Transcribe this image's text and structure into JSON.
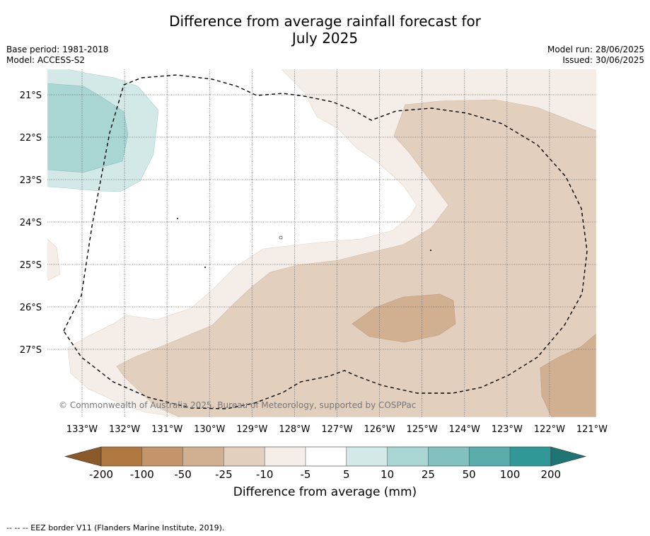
{
  "header": {
    "title_line1": "Difference from average rainfall forecast for",
    "title_line2": "July 2025",
    "base_period": "Base period: 1981-2018",
    "model": "Model: ACCESS-S2",
    "model_run": "Model run: 28/06/2025",
    "issued": "Issued: 30/06/2025"
  },
  "map": {
    "lat_labels": [
      "21°S",
      "22°S",
      "23°S",
      "24°S",
      "25°S",
      "26°S",
      "27°S"
    ],
    "lon_labels": [
      "133°W",
      "132°W",
      "131°W",
      "130°W",
      "129°W",
      "128°W",
      "127°W",
      "126°W",
      "125°W",
      "124°W",
      "123°W",
      "122°W",
      "121°W"
    ],
    "copyright": "© Commonwealth of Australia 2025, Bureau of Meteorology, supported by COSPPac",
    "colors": {
      "wet_10_25": "#a9d5d3",
      "wet_5_10": "#d3e9e8",
      "dry_5_10": "#f5eee8",
      "dry_10_25": "#e3cfbd",
      "dry_25_50": "#d1b091"
    }
  },
  "colorbar": {
    "ticks": [
      "-200",
      "-100",
      "-50",
      "-25",
      "-10",
      "-5",
      "5",
      "10",
      "25",
      "50",
      "100",
      "200"
    ],
    "colors": [
      "#8c5a28",
      "#b07840",
      "#c4956a",
      "#d1b091",
      "#e3cfbd",
      "#f5eee8",
      "#ffffff",
      "#d3e9e8",
      "#a9d5d3",
      "#82c1bf",
      "#5aadab",
      "#309896",
      "#1f7573"
    ],
    "label": "Difference from average (mm)"
  },
  "footer": {
    "eez_note": "--  --  -- EEZ border V11 (Flanders Marine Institute, 2019)."
  }
}
